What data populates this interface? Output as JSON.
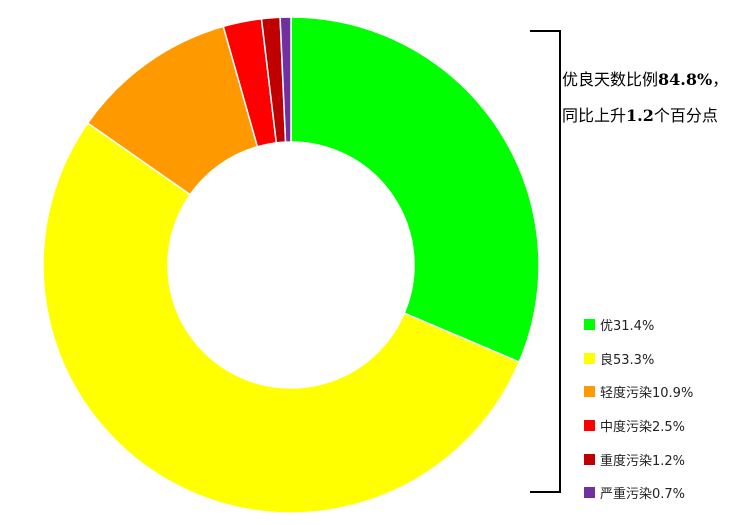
{
  "chart_data": {
    "type": "pie",
    "donut": true,
    "start": "top, clockwise",
    "categories": [
      "优",
      "良",
      "轻度污染",
      "中度污染",
      "重度污染",
      "严重污染"
    ],
    "values": [
      31.4,
      53.3,
      10.9,
      2.5,
      1.2,
      0.7
    ],
    "colors": [
      "#00ff00",
      "#ffff00",
      "#ff9900",
      "#ff0000",
      "#c00000",
      "#7030a0"
    ],
    "legend_labels": [
      "优31.4%",
      "良53.3%",
      "轻度污染10.9%",
      "中度污染2.5%",
      "重度污染1.2%",
      "严重污染0.7%"
    ],
    "legend_position": "right",
    "annotation": {
      "line1_text": "优良天数比例",
      "line1_value": "84.8%",
      "line1_suffix": "，",
      "line2_text": "同比上升",
      "line2_value": "1.2",
      "line2_suffix": "个百分点"
    }
  }
}
